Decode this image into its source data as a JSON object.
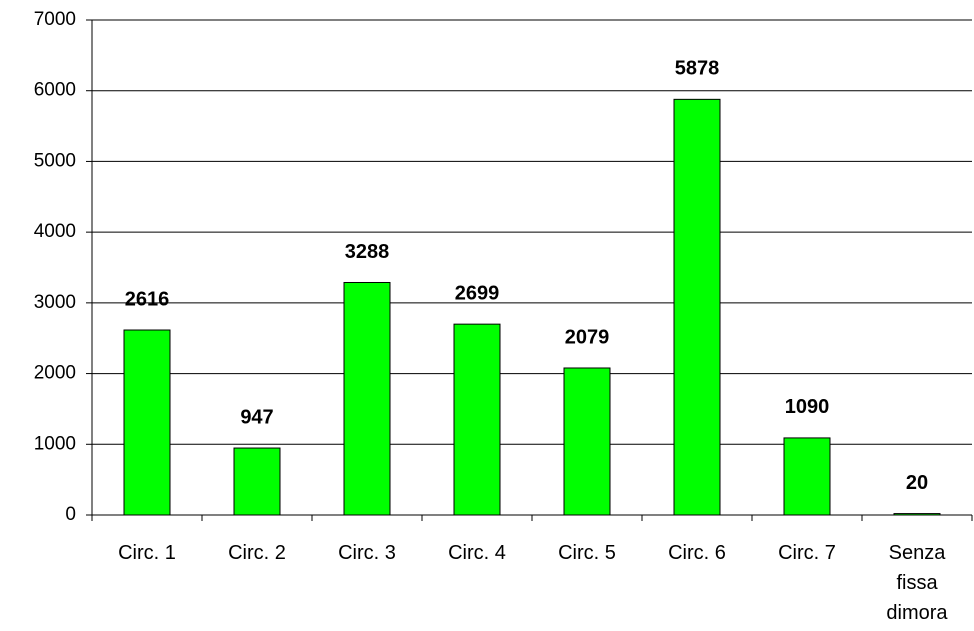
{
  "chart_data": {
    "type": "bar",
    "categories": [
      "Circ. 1",
      "Circ. 2",
      "Circ. 3",
      "Circ. 4",
      "Circ. 5",
      "Circ. 6",
      "Circ. 7",
      "Senza fissa dimora"
    ],
    "values": [
      2616,
      947,
      3288,
      2699,
      2079,
      5878,
      1090,
      20
    ],
    "color": "#00ff00",
    "ylim": [
      0,
      7000
    ],
    "yticks": [
      0,
      1000,
      2000,
      3000,
      4000,
      5000,
      6000,
      7000
    ],
    "grid": true
  }
}
